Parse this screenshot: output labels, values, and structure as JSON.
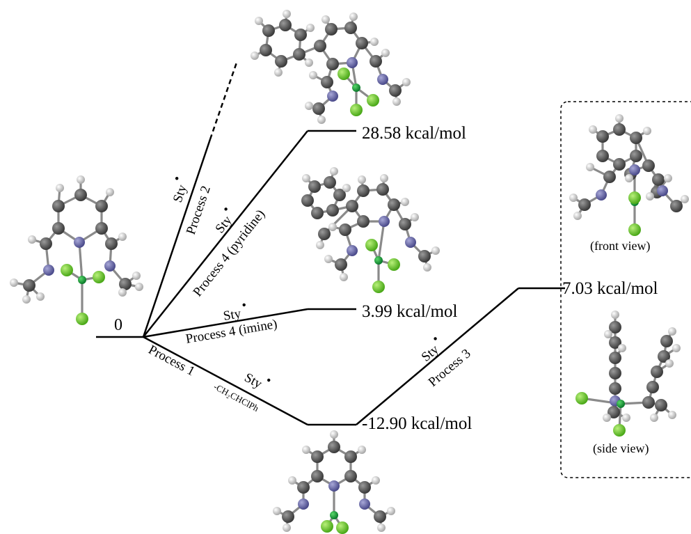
{
  "origin_label": "0",
  "levels": {
    "p2_top": "28.58 kcal/mol",
    "p4_imine": "3.99 kcal/mol",
    "p1": "-12.90 kcal/mol",
    "p3": "7.03 kcal/mol"
  },
  "paths": {
    "process2": "Process 2",
    "process4_pyridine": "Process 4 (pyridine)",
    "process4_imine": "Process 4 (imine)",
    "process1": "Process 1",
    "process1_sub": "-CH₂CHClPh",
    "process3": "Process 3",
    "sty": "Sty"
  },
  "inset": {
    "front_view": "(front view)",
    "side_view": "(side view)"
  },
  "colors": {
    "carbon": "#5a5a5a",
    "nitrogen": "#6b6bb0",
    "chlorine": "#6ccf2a",
    "iron": "#1a9a3a",
    "hydrogen": "#cfcfcf"
  }
}
